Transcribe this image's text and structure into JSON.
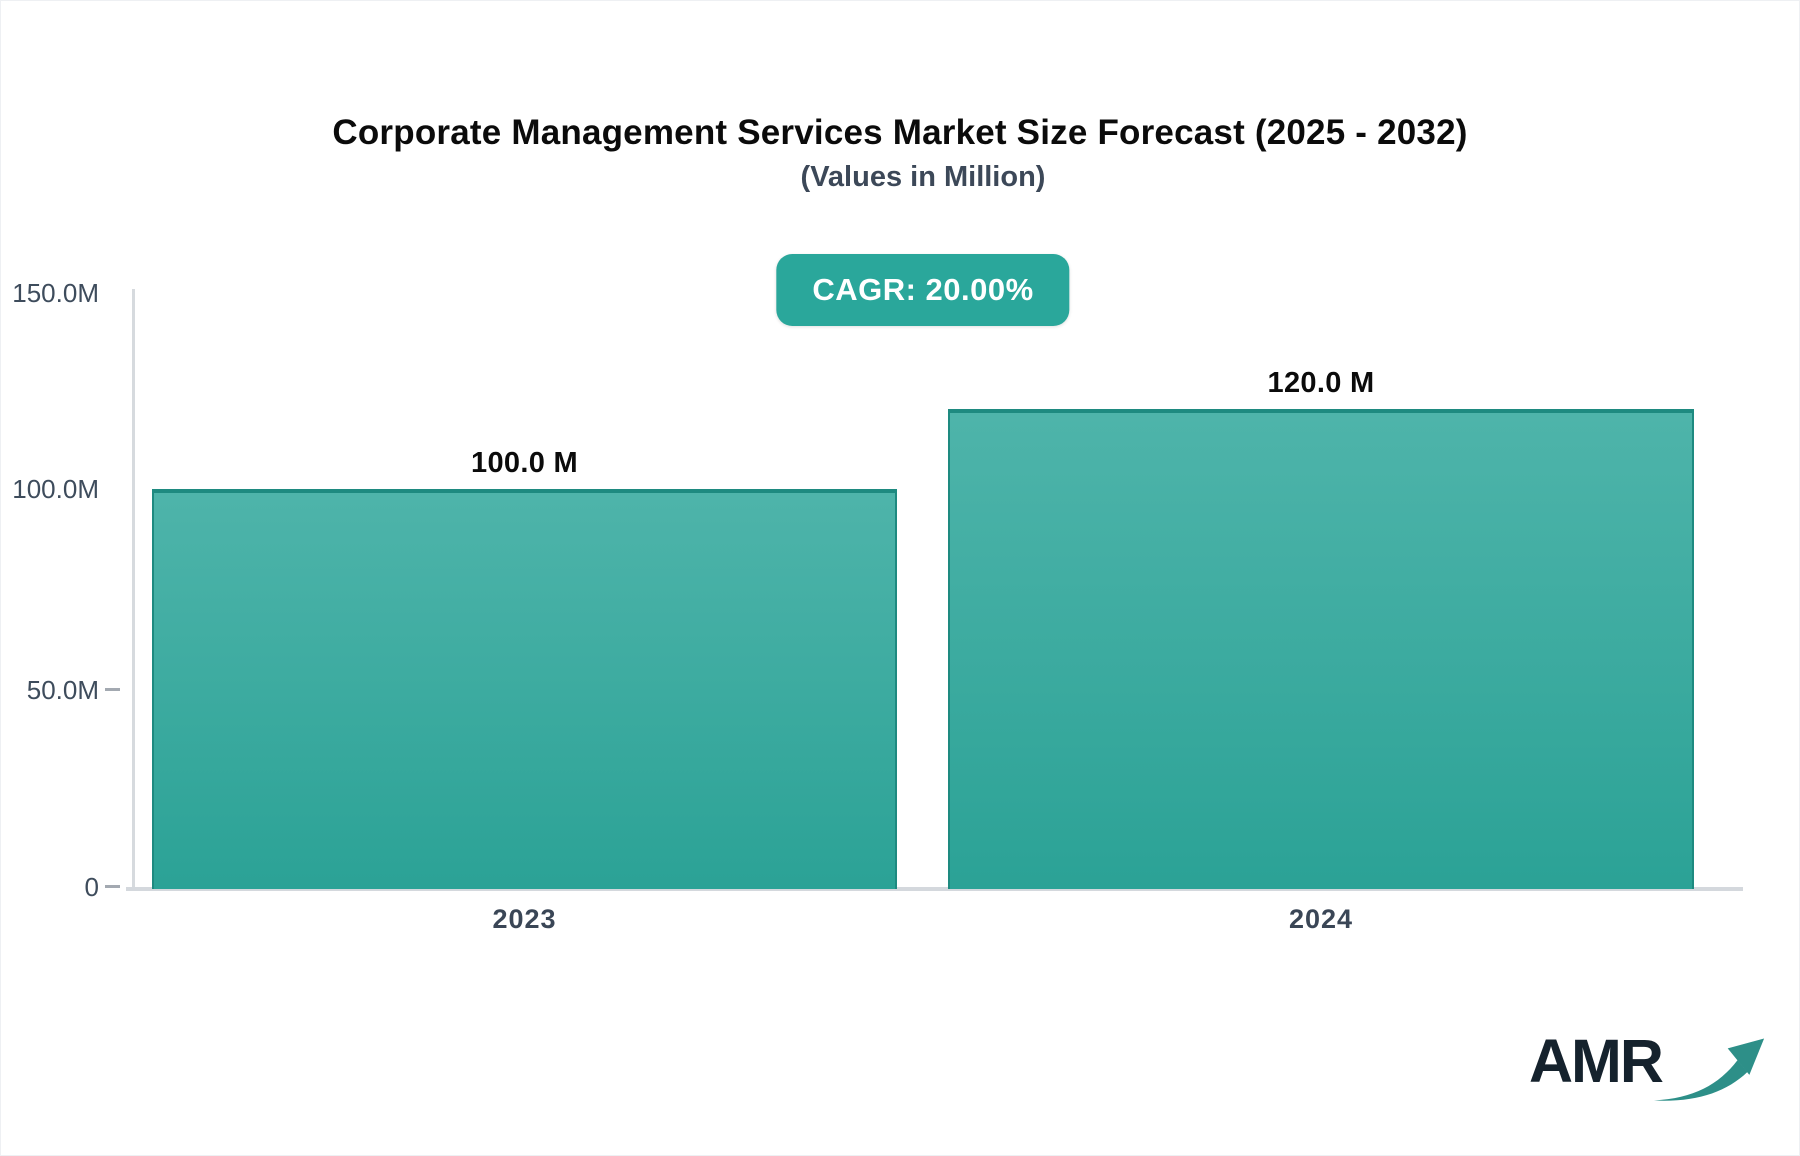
{
  "chart": {
    "title": "Corporate Management Services Market Size Forecast (2025 - 2032)",
    "subtitle": "(Values in Million)",
    "cagr_label": "CAGR: 20.00%"
  },
  "chart_data": {
    "type": "bar",
    "title": "Corporate Management Services Market Size Forecast (2025 - 2032)",
    "subtitle": "(Values in Million)",
    "cagr": "20.00%",
    "categories": [
      "2023",
      "2024"
    ],
    "values": [
      100.0,
      120.0
    ],
    "value_labels": [
      "100.0 M",
      "120.0 M"
    ],
    "unit": "Million",
    "xlabel": "",
    "ylabel": "",
    "ylim": [
      0,
      150
    ],
    "ytick_labels": [
      "150.0M",
      "100.0M",
      "50.0M",
      "0"
    ],
    "grid": false,
    "legend": false,
    "colors": {
      "bar_gradient_top": "#4eb4aa",
      "bar_gradient_bottom": "#2ba296",
      "bar_border": "#1e8a80",
      "badge_background": "#2aa79b",
      "axis_line": "#d4d8dd",
      "tick_text": "#3e4c5c",
      "title_text": "#0b0b0b"
    }
  },
  "logo": {
    "text": "AMR",
    "arrow_icon": "growth-arrow",
    "arrow_color": "#2d8f88"
  }
}
